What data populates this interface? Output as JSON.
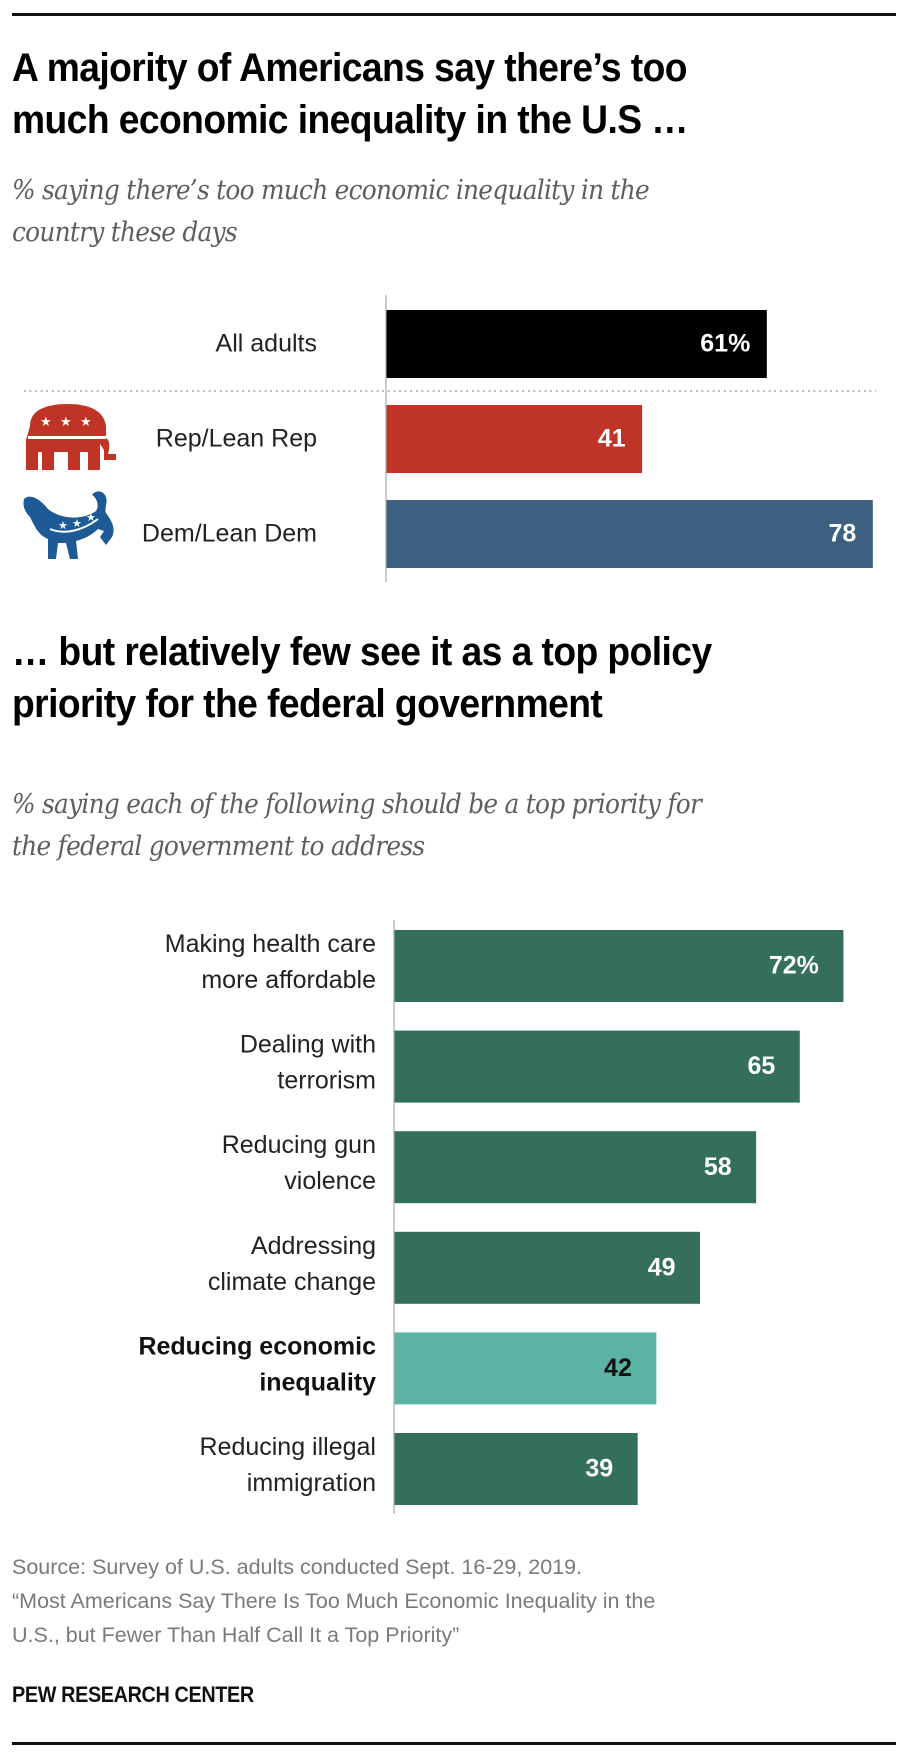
{
  "section1": {
    "title_line1": "A majority of Americans say there’s too",
    "title_line2": "much economic inequality in the U.S …",
    "subtitle_line1": "% saying there’s too much economic inequality in the",
    "subtitle_line2": "country these days"
  },
  "section2": {
    "title_line1": "… but relatively few see it as a top policy",
    "title_line2": "priority for the federal government",
    "subtitle_line1": "% saying each of the following should be a top priority for",
    "subtitle_line2": "the federal government to address"
  },
  "colors": {
    "all_adults": "#000000",
    "republican": "#bf3427",
    "democrat": "#3d6080",
    "priority": "#346f5e",
    "highlight": "#5ab3a3",
    "axis": "#bbbbbb",
    "divider": "#999999"
  },
  "icons": {
    "republican": "republican-elephant-icon",
    "democrat": "democrat-donkey-icon"
  },
  "chart_data": [
    {
      "type": "bar",
      "orientation": "horizontal",
      "title": "A majority of Americans say there’s too much economic inequality in the U.S …",
      "subtitle": "% saying there’s too much economic inequality in the country these days",
      "categories": [
        "All adults",
        "Rep/Lean Rep",
        "Dem/Lean Dem"
      ],
      "values": [
        61,
        41,
        78
      ],
      "value_labels": [
        "61%",
        "41",
        "78"
      ],
      "bar_colors": [
        "#000000",
        "#bf3427",
        "#3d6080"
      ],
      "divider_after_index": 0,
      "xlabel": "",
      "ylabel": "",
      "xlim": [
        0,
        78
      ],
      "grid": false,
      "legend": "none"
    },
    {
      "type": "bar",
      "orientation": "horizontal",
      "title": "… but relatively few see it as a top policy priority for the federal government",
      "subtitle": "% saying each of the following should be a top priority for the federal government to address",
      "categories": [
        [
          "Making health care",
          "more affordable"
        ],
        [
          "Dealing with",
          "terrorism"
        ],
        [
          "Reducing gun",
          "violence"
        ],
        [
          "Addressing",
          "climate change"
        ],
        [
          "Reducing economic",
          "inequality"
        ],
        [
          "Reducing illegal",
          "immigration"
        ]
      ],
      "values": [
        72,
        65,
        58,
        49,
        42,
        39
      ],
      "value_labels": [
        "72%",
        "65",
        "58",
        "49",
        "42",
        "39"
      ],
      "highlight_index": 4,
      "bar_colors": [
        "#346f5e",
        "#346f5e",
        "#346f5e",
        "#346f5e",
        "#5ab3a3",
        "#346f5e"
      ],
      "xlabel": "",
      "ylabel": "",
      "xlim": [
        0,
        72
      ],
      "grid": false,
      "legend": "none"
    }
  ],
  "footer": {
    "source_line1": "Source: Survey of U.S. adults conducted Sept. 16-29, 2019.",
    "source_line2": "“Most Americans Say There Is Too Much Economic Inequality in the",
    "source_line3": "U.S., but Fewer Than Half Call It a Top Priority”",
    "brand": "PEW RESEARCH CENTER"
  }
}
